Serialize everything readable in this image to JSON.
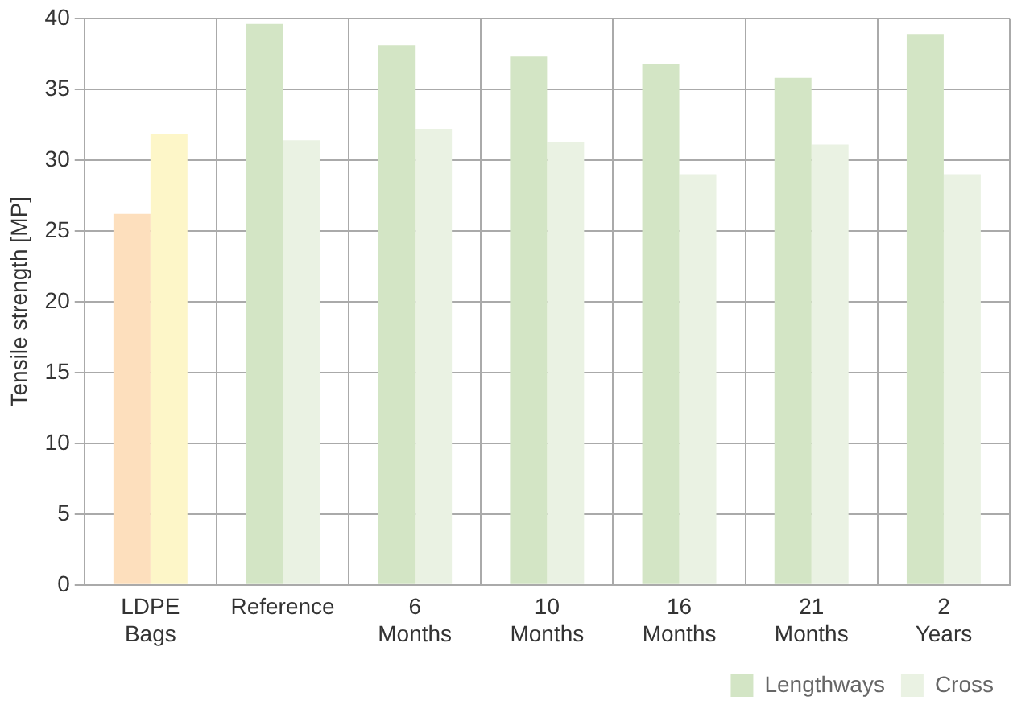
{
  "chart_data": {
    "type": "bar",
    "ylabel": "Tensile strength [MP]",
    "categories": [
      "LDPE Bags",
      "Reference",
      "6 Months",
      "10 Months",
      "16 Months",
      "21 Months",
      "2 Years"
    ],
    "series": [
      {
        "name": "Lengthways",
        "color": "#d3e5c5",
        "colors": [
          "#fddfbd",
          "#d3e5c5",
          "#d3e5c5",
          "#d3e5c5",
          "#d3e5c5",
          "#d3e5c5",
          "#d3e5c5"
        ],
        "values": [
          26.2,
          39.6,
          38.1,
          37.3,
          36.8,
          35.8,
          38.9
        ]
      },
      {
        "name": "Cross",
        "color": "#eaf2e3",
        "colors": [
          "#fdf6c8",
          "#eaf2e3",
          "#eaf2e3",
          "#eaf2e3",
          "#eaf2e3",
          "#eaf2e3",
          "#eaf2e3"
        ],
        "values": [
          31.8,
          31.4,
          32.2,
          31.3,
          29.0,
          31.1,
          29.0
        ]
      }
    ],
    "ylim": [
      0,
      40
    ],
    "yticks": [
      0,
      5,
      10,
      15,
      20,
      25,
      30,
      35,
      40
    ],
    "grid": true,
    "legend": "bottom right"
  }
}
